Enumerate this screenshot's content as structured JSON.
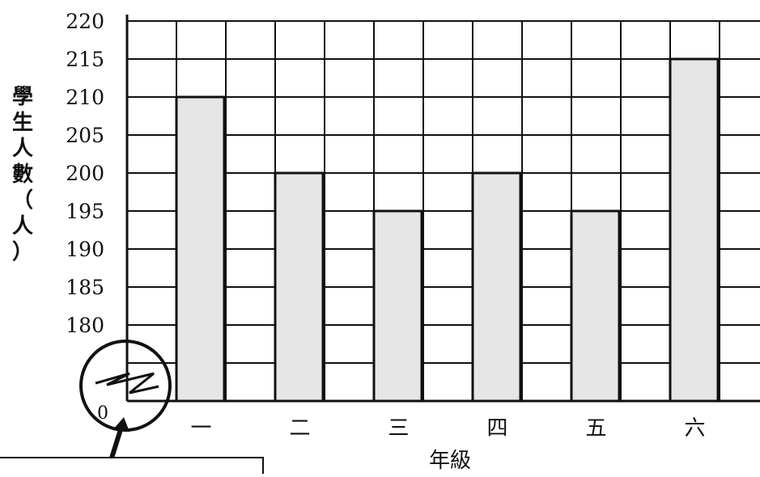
{
  "chart_data": {
    "type": "bar",
    "title": "",
    "xlabel": "年級",
    "ylabel": "學生人數（人）",
    "ylabel_chars": [
      "學",
      "生",
      "人",
      "數",
      "（",
      "人",
      "）"
    ],
    "categories": [
      "一",
      "二",
      "三",
      "四",
      "五",
      "六"
    ],
    "values": [
      210,
      200,
      195,
      200,
      195,
      215
    ],
    "yticks": [
      180,
      185,
      190,
      195,
      200,
      205,
      210,
      215,
      220
    ],
    "ylim": [
      175,
      220
    ],
    "axis_break": true,
    "origin_label": "0",
    "grid": true,
    "bar_color": "#e6e6e6",
    "bar_edge_color": "#111111"
  }
}
